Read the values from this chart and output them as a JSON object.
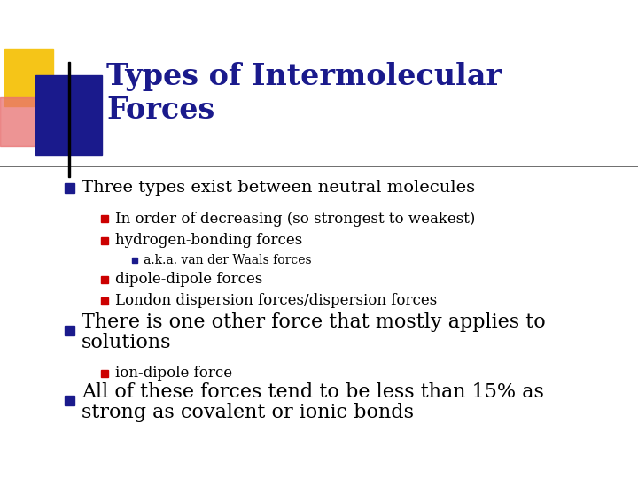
{
  "title_line1": "Types of Intermolecular",
  "title_line2": "Forces",
  "title_color": "#1a1a8c",
  "bg_color": "#ffffff",
  "bullet_color": "#1a1a8c",
  "sub_bullet_color": "#cc0000",
  "subsub_bullet_color": "#1a1a8c",
  "text_color": "#000000",
  "bullet1": "Three types exist between neutral molecules",
  "sub1a": "In order of decreasing (so strongest to weakest)",
  "sub1b": "hydrogen-bonding forces",
  "subsub1b": "a.k.a. van der Waals forces",
  "sub1c": "dipole-dipole forces",
  "sub1d": "London dispersion forces/dispersion forces",
  "bullet2_line1": "There is one other force that mostly applies to",
  "bullet2_line2": "solutions",
  "sub2a": "ion-dipole force",
  "bullet3_line1": "All of these forces tend to be less than 15% as",
  "bullet3_line2": "strong as covalent or ionic bonds",
  "decoration_yellow": "#f5c518",
  "decoration_red": "#e87070",
  "decoration_blue": "#1a1a8c",
  "line_color": "#555555",
  "title_fontsize": 24,
  "bullet1_fontsize": 14,
  "sub_fontsize": 12,
  "subsub_fontsize": 10,
  "bullet23_fontsize": 16
}
